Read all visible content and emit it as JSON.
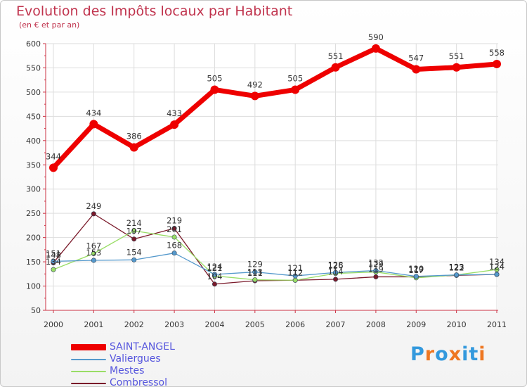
{
  "header": {
    "title": "Evolution des Impôts locaux par Habitant",
    "subtitle": "(en € et par an)"
  },
  "logo": {
    "text": "Proxiti",
    "colors": [
      "#3399dd",
      "#ee7722",
      "#3399dd",
      "#ee7722",
      "#3399dd",
      "#3399dd",
      "#ee7722"
    ]
  },
  "chart_data": {
    "type": "line",
    "title": "Evolution des Impôts locaux par Habitant",
    "subtitle": "(en € et par an)",
    "xlabel": "",
    "ylabel": "",
    "ylim": [
      50,
      600
    ],
    "yticks": [
      "50",
      "100",
      "150",
      "200",
      "250",
      "300",
      "350",
      "400",
      "450",
      "500",
      "550",
      "600"
    ],
    "grid": true,
    "legend_position": "bottom-left",
    "categories": [
      "2000",
      "2001",
      "2002",
      "2003",
      "2004",
      "2005",
      "2006",
      "2007",
      "2008",
      "2009",
      "2010",
      "2011"
    ],
    "series": [
      {
        "name": "Combressol",
        "color": "#7a1a2a",
        "values": [
          148,
          249,
          197,
          219,
          104,
          111,
          112,
          114,
          119,
          119,
          122,
          124
        ],
        "labels": [
          "148",
          "249",
          "197",
          "219",
          "104",
          "111",
          "112",
          "114",
          "119",
          "119",
          "122",
          "124"
        ]
      },
      {
        "name": "Mestes",
        "color": "#99dd66",
        "values": [
          134,
          167,
          214,
          201,
          121,
          113,
          112,
          126,
          129,
          117,
          123,
          134
        ],
        "labels": [
          "134",
          "167",
          "214",
          "201",
          "121",
          "113",
          "112",
          "126",
          "129",
          "117",
          "123",
          "134"
        ]
      },
      {
        "name": "Valiergues",
        "color": "#5599cc",
        "values": [
          151,
          153,
          154,
          168,
          124,
          129,
          121,
          128,
          132,
          120,
          123,
          124
        ],
        "labels": [
          "151",
          "153",
          "154",
          "168",
          "124",
          "129",
          "121",
          "128",
          "132",
          "120",
          "123",
          "124"
        ]
      },
      {
        "name": "SAINT-ANGEL",
        "color": "#ee0000",
        "values": [
          344,
          434,
          386,
          433,
          505,
          492,
          505,
          551,
          590,
          547,
          551,
          558
        ],
        "labels": [
          "344",
          "434",
          "386",
          "433",
          "505",
          "492",
          "505",
          "551",
          "590",
          "547",
          "551",
          "558"
        ]
      }
    ]
  },
  "legend": {
    "items": [
      {
        "label": "SAINT-ANGEL",
        "color": "#ee0000"
      },
      {
        "label": "Valiergues",
        "color": "#5599cc"
      },
      {
        "label": "Mestes",
        "color": "#99dd66"
      },
      {
        "label": "Combressol",
        "color": "#7a1a2a"
      }
    ]
  }
}
